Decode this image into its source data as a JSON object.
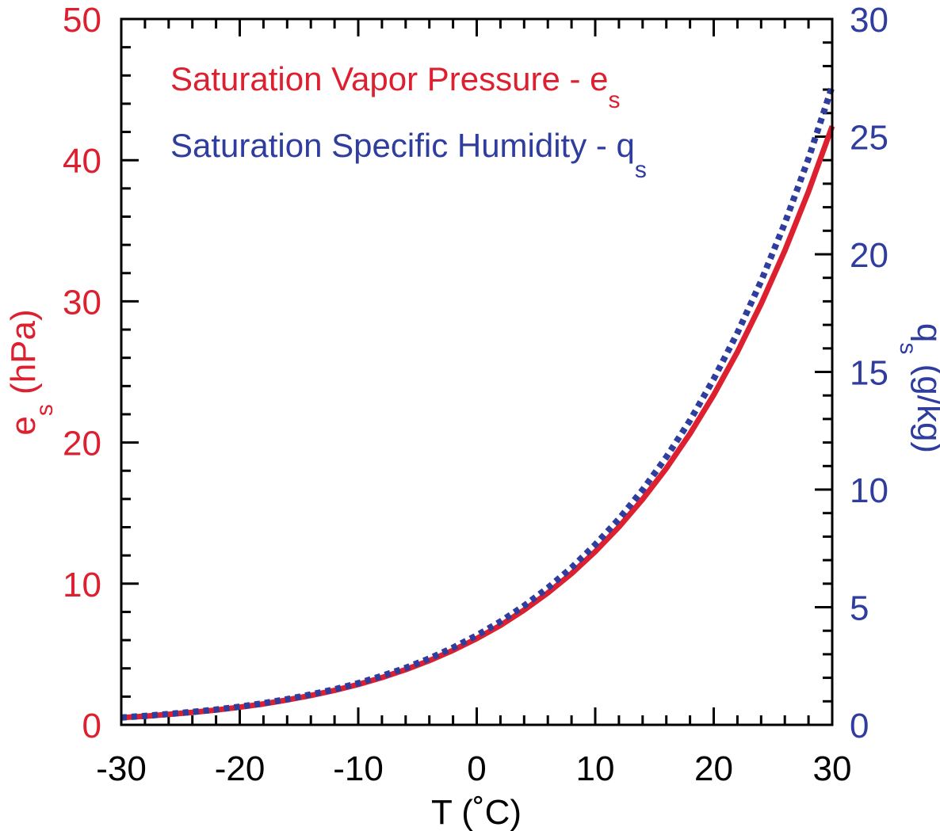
{
  "colors": {
    "es": "#dd2030",
    "qs": "#2e3d9e",
    "axis": "#000000"
  },
  "chart_data": {
    "type": "line",
    "x": [
      -30,
      -28,
      -26,
      -24,
      -22,
      -20,
      -18,
      -16,
      -14,
      -12,
      -10,
      -8,
      -6,
      -4,
      -2,
      0,
      2,
      4,
      6,
      8,
      10,
      12,
      14,
      16,
      18,
      20,
      22,
      24,
      26,
      28,
      30
    ],
    "xlim": [
      -30,
      30
    ],
    "x_ticks": [
      "-30",
      "-20",
      "-10",
      "0",
      "10",
      "20",
      "30"
    ],
    "x_tick_values": [
      -30,
      -20,
      -10,
      0,
      10,
      20,
      30
    ],
    "xlabel": "T (˚C)",
    "left_axis": {
      "label_main": "e",
      "label_sub": "s",
      "label_rest": " (hPa)",
      "ylim": [
        0,
        50
      ],
      "ticks": [
        "0",
        "10",
        "20",
        "30",
        "40",
        "50"
      ],
      "tick_values": [
        0,
        10,
        20,
        30,
        40,
        50
      ]
    },
    "right_axis": {
      "label_main": "q",
      "label_sub": "s",
      "label_rest": " (g/kg)",
      "ylim": [
        0,
        30
      ],
      "ticks": [
        "0",
        "5",
        "10",
        "15",
        "20",
        "25",
        "30"
      ],
      "tick_values": [
        0,
        5,
        10,
        15,
        20,
        25,
        30
      ]
    },
    "series": [
      {
        "name_main": "Saturation Vapor Pressure - e",
        "name_sub": "s",
        "axis": "left",
        "style": "solid",
        "values": [
          0.51,
          0.61,
          0.74,
          0.88,
          1.05,
          1.25,
          1.48,
          1.76,
          2.08,
          2.44,
          2.86,
          3.35,
          3.91,
          4.55,
          5.28,
          6.11,
          7.05,
          8.13,
          9.35,
          10.72,
          12.27,
          14.02,
          15.98,
          18.17,
          20.63,
          23.37,
          26.42,
          29.82,
          33.59,
          37.78,
          42.41
        ]
      },
      {
        "name_main": "Saturation Specific Humidity - q",
        "name_sub": "s",
        "axis": "right",
        "style": "dotted",
        "values": [
          0.31,
          0.38,
          0.46,
          0.55,
          0.65,
          0.77,
          0.92,
          1.09,
          1.29,
          1.51,
          1.77,
          2.08,
          2.42,
          2.82,
          3.28,
          3.8,
          4.39,
          5.06,
          5.82,
          6.68,
          7.66,
          8.75,
          9.99,
          11.38,
          12.94,
          14.7,
          16.66,
          18.86,
          21.32,
          24.07,
          27.14
        ]
      }
    ]
  }
}
